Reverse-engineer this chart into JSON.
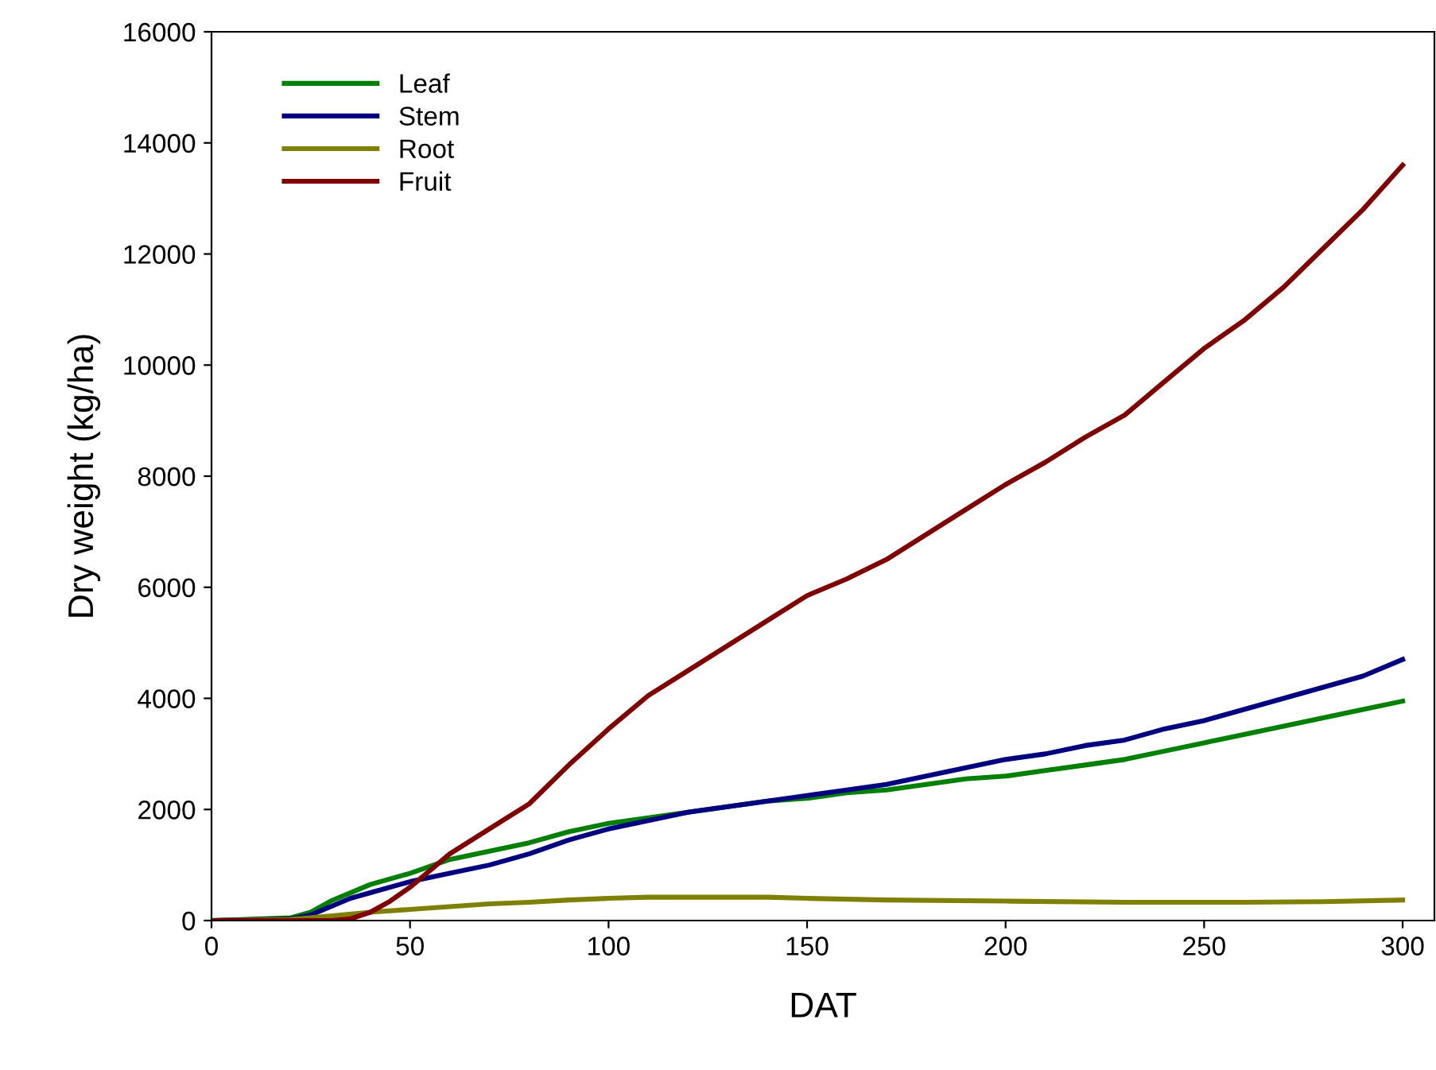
{
  "chart_data": {
    "type": "line",
    "xlabel": "DAT",
    "ylabel": "Dry weight (kg/ha)",
    "xlim": [
      0,
      308
    ],
    "ylim": [
      0,
      16000
    ],
    "xticks": [
      0,
      50,
      100,
      150,
      200,
      250,
      300
    ],
    "yticks": [
      0,
      2000,
      4000,
      6000,
      8000,
      10000,
      12000,
      14000,
      16000
    ],
    "grid": false,
    "legend": "top left",
    "marker": "none",
    "line_style": "solid",
    "series": [
      {
        "name": "Leaf",
        "color": "#008000",
        "x": [
          0,
          20,
          25,
          30,
          35,
          40,
          50,
          60,
          70,
          80,
          90,
          100,
          110,
          120,
          130,
          140,
          150,
          160,
          170,
          180,
          190,
          200,
          210,
          220,
          230,
          240,
          250,
          260,
          270,
          280,
          290,
          300
        ],
        "values": [
          0,
          50,
          150,
          350,
          500,
          650,
          850,
          1100,
          1250,
          1400,
          1600,
          1750,
          1850,
          1950,
          2050,
          2150,
          2200,
          2300,
          2350,
          2450,
          2550,
          2600,
          2700,
          2800,
          2900,
          3050,
          3200,
          3350,
          3500,
          3650,
          3800,
          3950
        ]
      },
      {
        "name": "Stem",
        "color": "#000080",
        "x": [
          0,
          20,
          25,
          30,
          35,
          40,
          50,
          60,
          70,
          80,
          90,
          100,
          110,
          120,
          130,
          140,
          150,
          160,
          170,
          180,
          190,
          200,
          210,
          220,
          230,
          240,
          250,
          260,
          270,
          280,
          290,
          300
        ],
        "values": [
          0,
          30,
          100,
          250,
          400,
          500,
          700,
          850,
          1000,
          1200,
          1450,
          1650,
          1800,
          1950,
          2050,
          2150,
          2250,
          2350,
          2450,
          2600,
          2750,
          2900,
          3000,
          3150,
          3250,
          3450,
          3600,
          3800,
          4000,
          4200,
          4400,
          4700
        ]
      },
      {
        "name": "Root",
        "color": "#808000",
        "x": [
          0,
          20,
          30,
          40,
          50,
          60,
          70,
          80,
          90,
          100,
          110,
          120,
          130,
          140,
          150,
          170,
          200,
          230,
          260,
          280,
          300
        ],
        "values": [
          0,
          20,
          80,
          150,
          200,
          250,
          300,
          330,
          370,
          400,
          420,
          420,
          420,
          420,
          400,
          370,
          350,
          330,
          330,
          340,
          370
        ]
      },
      {
        "name": "Fruit",
        "color": "#800000",
        "x": [
          0,
          30,
          35,
          40,
          45,
          50,
          55,
          60,
          70,
          80,
          90,
          100,
          110,
          120,
          130,
          140,
          150,
          160,
          170,
          180,
          190,
          200,
          210,
          220,
          230,
          240,
          250,
          260,
          270,
          280,
          290,
          300
        ],
        "values": [
          0,
          0,
          30,
          150,
          350,
          600,
          900,
          1200,
          1650,
          2100,
          2800,
          3450,
          4050,
          4500,
          4950,
          5400,
          5850,
          6150,
          6500,
          6950,
          7400,
          7850,
          8250,
          8700,
          9100,
          9700,
          10300,
          10800,
          11400,
          12100,
          12800,
          13600
        ]
      }
    ]
  }
}
